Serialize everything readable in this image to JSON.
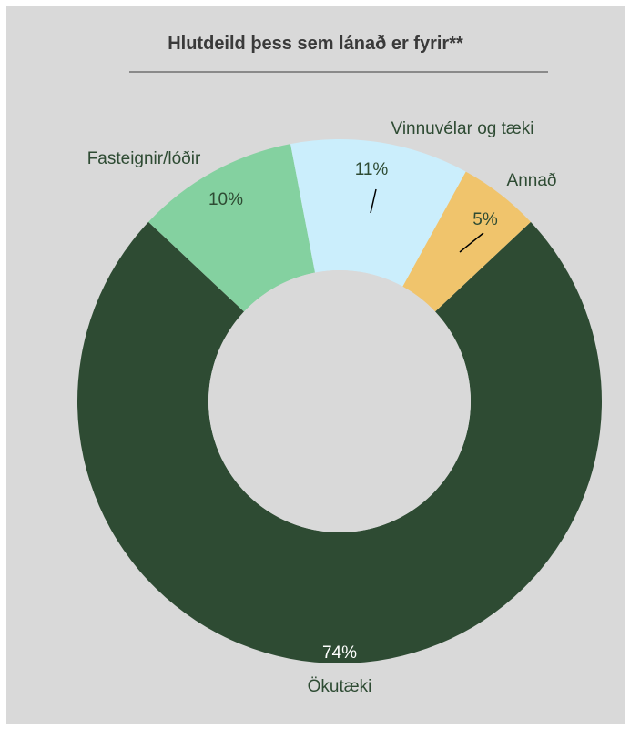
{
  "chart_data": {
    "type": "pie",
    "title": "Hlutdeild þess sem lánað er fyrir**",
    "categories": [
      "Ökutæki",
      "Fasteignir/lóðir",
      "Vinnuvélar og tæki",
      "Annað"
    ],
    "values": [
      74,
      10,
      11,
      5
    ],
    "value_labels": [
      "74%",
      "10%",
      "11%",
      "5%"
    ],
    "donut": true,
    "colors": [
      "#2e4b33",
      "#84d1a0",
      "#cbeefc",
      "#f0c46c"
    ]
  }
}
